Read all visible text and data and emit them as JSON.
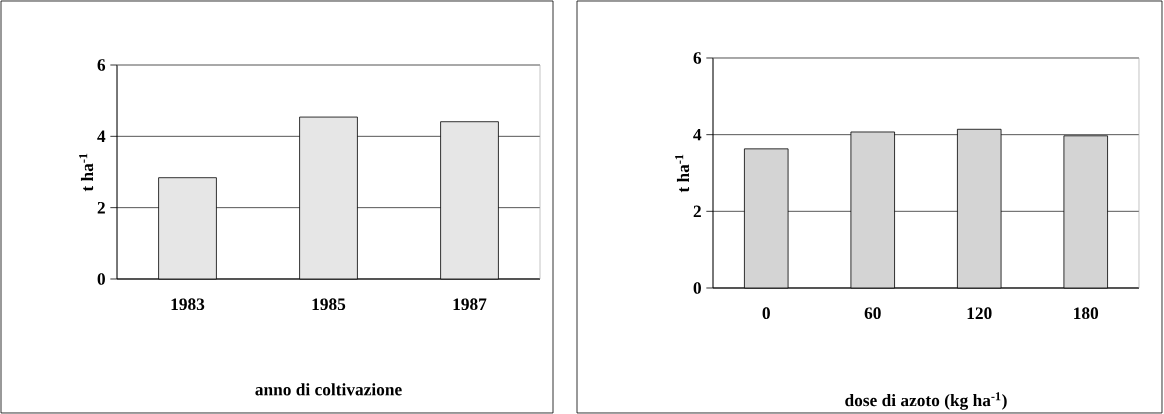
{
  "chart_data": [
    {
      "type": "bar",
      "categories": [
        "1983",
        "1985",
        "1987"
      ],
      "values": [
        2.84,
        4.54,
        4.41
      ],
      "color": "#e6e6e6",
      "ylabel": "t ha$^{-1}$",
      "xlabel": "anno di coltivazione",
      "ylim": [
        0,
        6
      ],
      "yticks": [
        0,
        2,
        4,
        6
      ],
      "grid": "y"
    },
    {
      "type": "bar",
      "categories": [
        "0",
        "60",
        "120",
        "180"
      ],
      "values": [
        3.63,
        4.07,
        4.14,
        3.97
      ],
      "color": "#d4d4d4",
      "ylabel": "t ha$^{-1}$",
      "xlabel": "dose di azoto (kg ha$^{-1}$)",
      "ylim": [
        0,
        6
      ],
      "yticks": [
        0,
        2,
        4,
        6
      ],
      "grid": "y"
    }
  ]
}
